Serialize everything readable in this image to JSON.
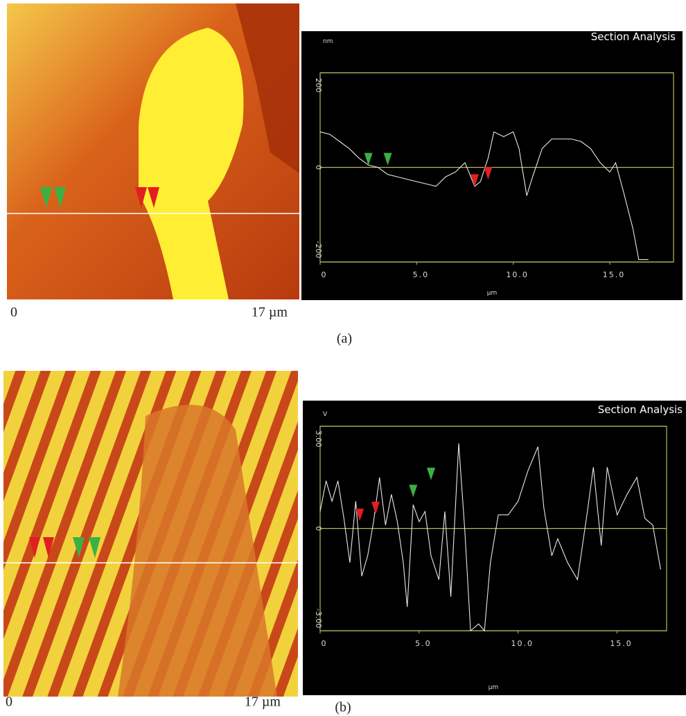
{
  "chart_data": [
    {
      "type": "line",
      "title": "Section Analysis",
      "y_label": "nm",
      "x_label": "µm",
      "image_scale_start": "0",
      "image_scale_end": "17 µm",
      "panel_label": "(a)",
      "xlim": [
        0,
        18.3
      ],
      "ylim": [
        -200,
        200
      ],
      "xticks": [
        0,
        {
          "value": 5,
          "label": "5.0"
        },
        {
          "value": 10,
          "label": "10.0"
        },
        {
          "value": 15,
          "label": "15.0"
        }
      ],
      "yticks": [
        -200,
        0,
        200
      ],
      "x": [
        0,
        0.5,
        1,
        1.5,
        2,
        2.5,
        3,
        3.5,
        4,
        4.5,
        5,
        5.5,
        6,
        6.5,
        7,
        7.5,
        8,
        8.3,
        8.7,
        9,
        9.5,
        10,
        10.3,
        10.7,
        11,
        11.5,
        12,
        12.5,
        13,
        13.5,
        14,
        14.5,
        15,
        15.3,
        15.7,
        16.2,
        16.5,
        17
      ],
      "series": [
        {
          "color": "#e8e8e8",
          "values": [
            75,
            70,
            55,
            40,
            20,
            5,
            0,
            -15,
            -20,
            -25,
            -30,
            -35,
            -40,
            -20,
            -10,
            10,
            -40,
            -30,
            20,
            75,
            65,
            75,
            40,
            -60,
            -20,
            40,
            60,
            60,
            60,
            55,
            40,
            10,
            -10,
            10,
            -50,
            -130,
            -195,
            -195
          ]
        }
      ],
      "cursors": [
        {
          "x": 2.5,
          "y": 10,
          "color": "#3cb043"
        },
        {
          "x": 3.5,
          "y": 10,
          "color": "#3cb043"
        },
        {
          "x": 8,
          "y": -35,
          "color": "#e02020"
        },
        {
          "x": 8.7,
          "y": -20,
          "color": "#e02020"
        }
      ]
    },
    {
      "type": "line",
      "title": "Section Analysis",
      "y_label": "V",
      "x_label": "µm",
      "image_scale_start": "0",
      "image_scale_end": "17 µm",
      "panel_label": "(b)",
      "xlim": [
        0,
        17.5
      ],
      "ylim": [
        -3,
        3
      ],
      "xticks": [
        0,
        {
          "value": 5,
          "label": "5.0"
        },
        {
          "value": 10,
          "label": "10.0"
        },
        {
          "value": 15,
          "label": "15.0"
        }
      ],
      "yticks": [
        {
          "value": -3,
          "label": "-3.00"
        },
        0,
        {
          "value": 3,
          "label": "3.00"
        }
      ],
      "x": [
        0,
        0.3,
        0.6,
        0.9,
        1.2,
        1.5,
        1.8,
        2.1,
        2.4,
        2.7,
        3,
        3.3,
        3.6,
        3.9,
        4.2,
        4.4,
        4.7,
        5,
        5.3,
        5.6,
        6,
        6.3,
        6.6,
        7,
        7.3,
        7.6,
        8,
        8.3,
        8.6,
        9,
        9.5,
        10,
        10.5,
        11,
        11.3,
        11.7,
        12,
        12.5,
        13,
        13.5,
        13.8,
        14.2,
        14.5,
        15,
        15.5,
        16,
        16.4,
        16.8,
        17.2
      ],
      "series": [
        {
          "color": "#e8e8e8",
          "values": [
            0.5,
            1.4,
            0.8,
            1.4,
            0.3,
            -1,
            0.8,
            -1.4,
            -0.8,
            0.2,
            1.5,
            0.1,
            1.0,
            0.2,
            -1.0,
            -2.3,
            0.7,
            0.2,
            0.5,
            -0.8,
            -1.5,
            0.5,
            -2.0,
            2.5,
            0.0,
            -3.0,
            -2.8,
            -3.0,
            -1.0,
            0.4,
            0.4,
            0.8,
            1.7,
            2.4,
            0.6,
            -0.8,
            -0.3,
            -1.0,
            -1.5,
            0.5,
            1.8,
            -0.5,
            1.8,
            0.4,
            1.0,
            1.5,
            0.3,
            0.1,
            -1.2
          ]
        }
      ],
      "cursors": [
        {
          "x": 2.0,
          "y": 0.3,
          "color": "#e02020"
        },
        {
          "x": 2.8,
          "y": 0.5,
          "color": "#e02020"
        },
        {
          "x": 4.7,
          "y": 1.0,
          "color": "#3cb043"
        },
        {
          "x": 5.6,
          "y": 1.5,
          "color": "#3cb043"
        }
      ]
    }
  ]
}
